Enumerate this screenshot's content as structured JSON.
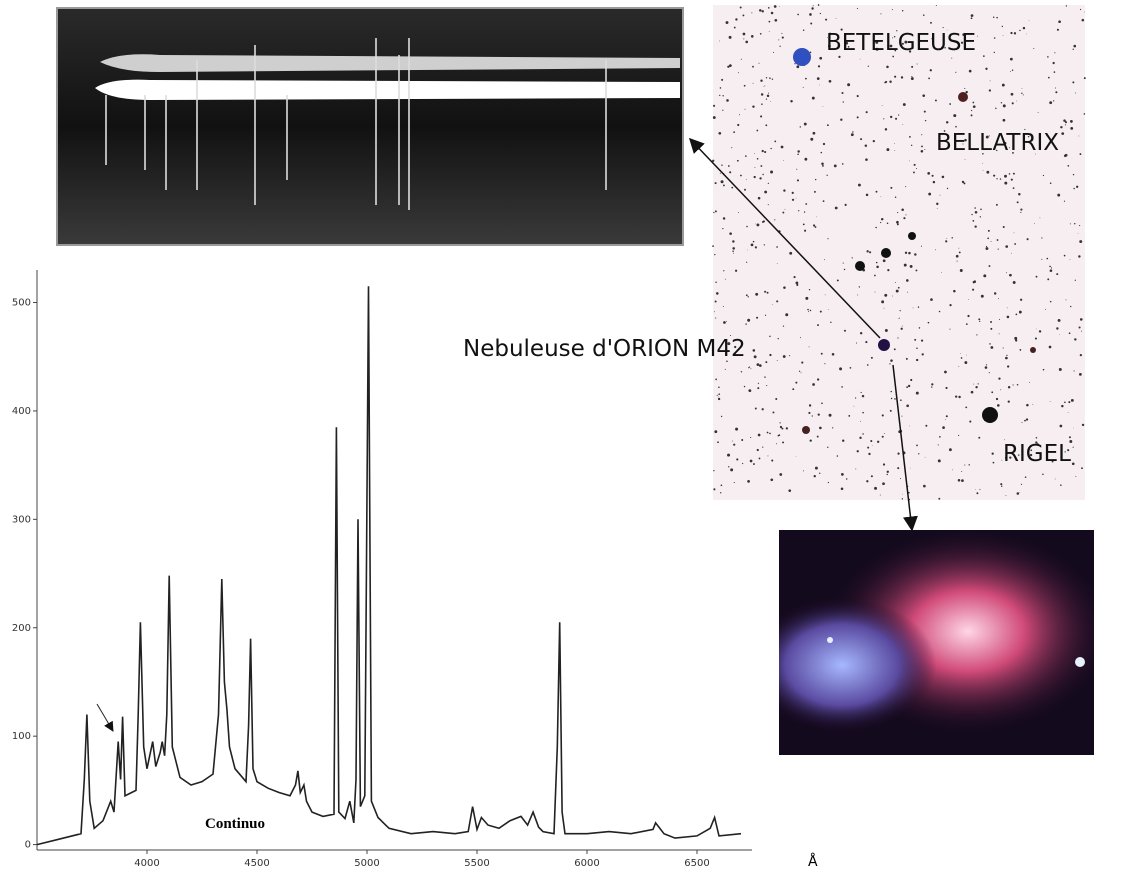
{
  "chart_data": {
    "type": "line",
    "color": "#222222",
    "x": [
      3500,
      3600,
      3700,
      3715,
      3727,
      3740,
      3760,
      3800,
      3835,
      3850,
      3869,
      3880,
      3889,
      3900,
      3950,
      3960,
      3970,
      3985,
      4000,
      4026,
      4040,
      4060,
      4069,
      4080,
      4090,
      4101,
      4115,
      4150,
      4200,
      4250,
      4300,
      4325,
      4340,
      4352,
      4363,
      4375,
      4400,
      4450,
      4462,
      4471,
      4482,
      4500,
      4550,
      4600,
      4650,
      4675,
      4686,
      4697,
      4713,
      4725,
      4750,
      4800,
      4850,
      4861,
      4872,
      4900,
      4922,
      4940,
      4950,
      4959,
      4970,
      4990,
      5007,
      5020,
      5050,
      5100,
      5200,
      5300,
      5400,
      5460,
      5480,
      5500,
      5520,
      5550,
      5600,
      5650,
      5700,
      5730,
      5755,
      5780,
      5800,
      5850,
      5865,
      5876,
      5887,
      5900,
      6000,
      6100,
      6200,
      6300,
      6312,
      6350,
      6400,
      6500,
      6560,
      6580,
      6600,
      6700
    ],
    "values": [
      0,
      5,
      10,
      60,
      120,
      40,
      15,
      22,
      40,
      30,
      95,
      60,
      118,
      45,
      50,
      120,
      205,
      90,
      70,
      95,
      72,
      85,
      95,
      82,
      120,
      248,
      90,
      62,
      55,
      58,
      65,
      120,
      245,
      150,
      125,
      90,
      70,
      58,
      110,
      190,
      70,
      58,
      52,
      48,
      45,
      55,
      68,
      48,
      55,
      40,
      30,
      26,
      28,
      385,
      30,
      24,
      40,
      20,
      60,
      300,
      35,
      45,
      515,
      40,
      25,
      15,
      10,
      12,
      10,
      12,
      35,
      14,
      25,
      18,
      15,
      22,
      26,
      18,
      30,
      16,
      12,
      10,
      90,
      205,
      30,
      10,
      10,
      12,
      10,
      14,
      20,
      10,
      6,
      8,
      15,
      25,
      8,
      10
    ],
    "xlim": [
      3500,
      6750
    ],
    "ylim": [
      -5,
      530
    ],
    "xticks": [
      4000,
      4500,
      5000,
      5500,
      6000,
      6500
    ],
    "yticks": [
      0,
      100,
      200,
      300,
      400,
      500
    ],
    "x_label": "Å",
    "annotation": "Continuo"
  },
  "labels": {
    "betelgeuse": "BETELGEUSE",
    "bellatrix": "BELLATRIX",
    "nebula": "Nebuleuse d'ORION M42",
    "rigel": "RIGEL"
  }
}
